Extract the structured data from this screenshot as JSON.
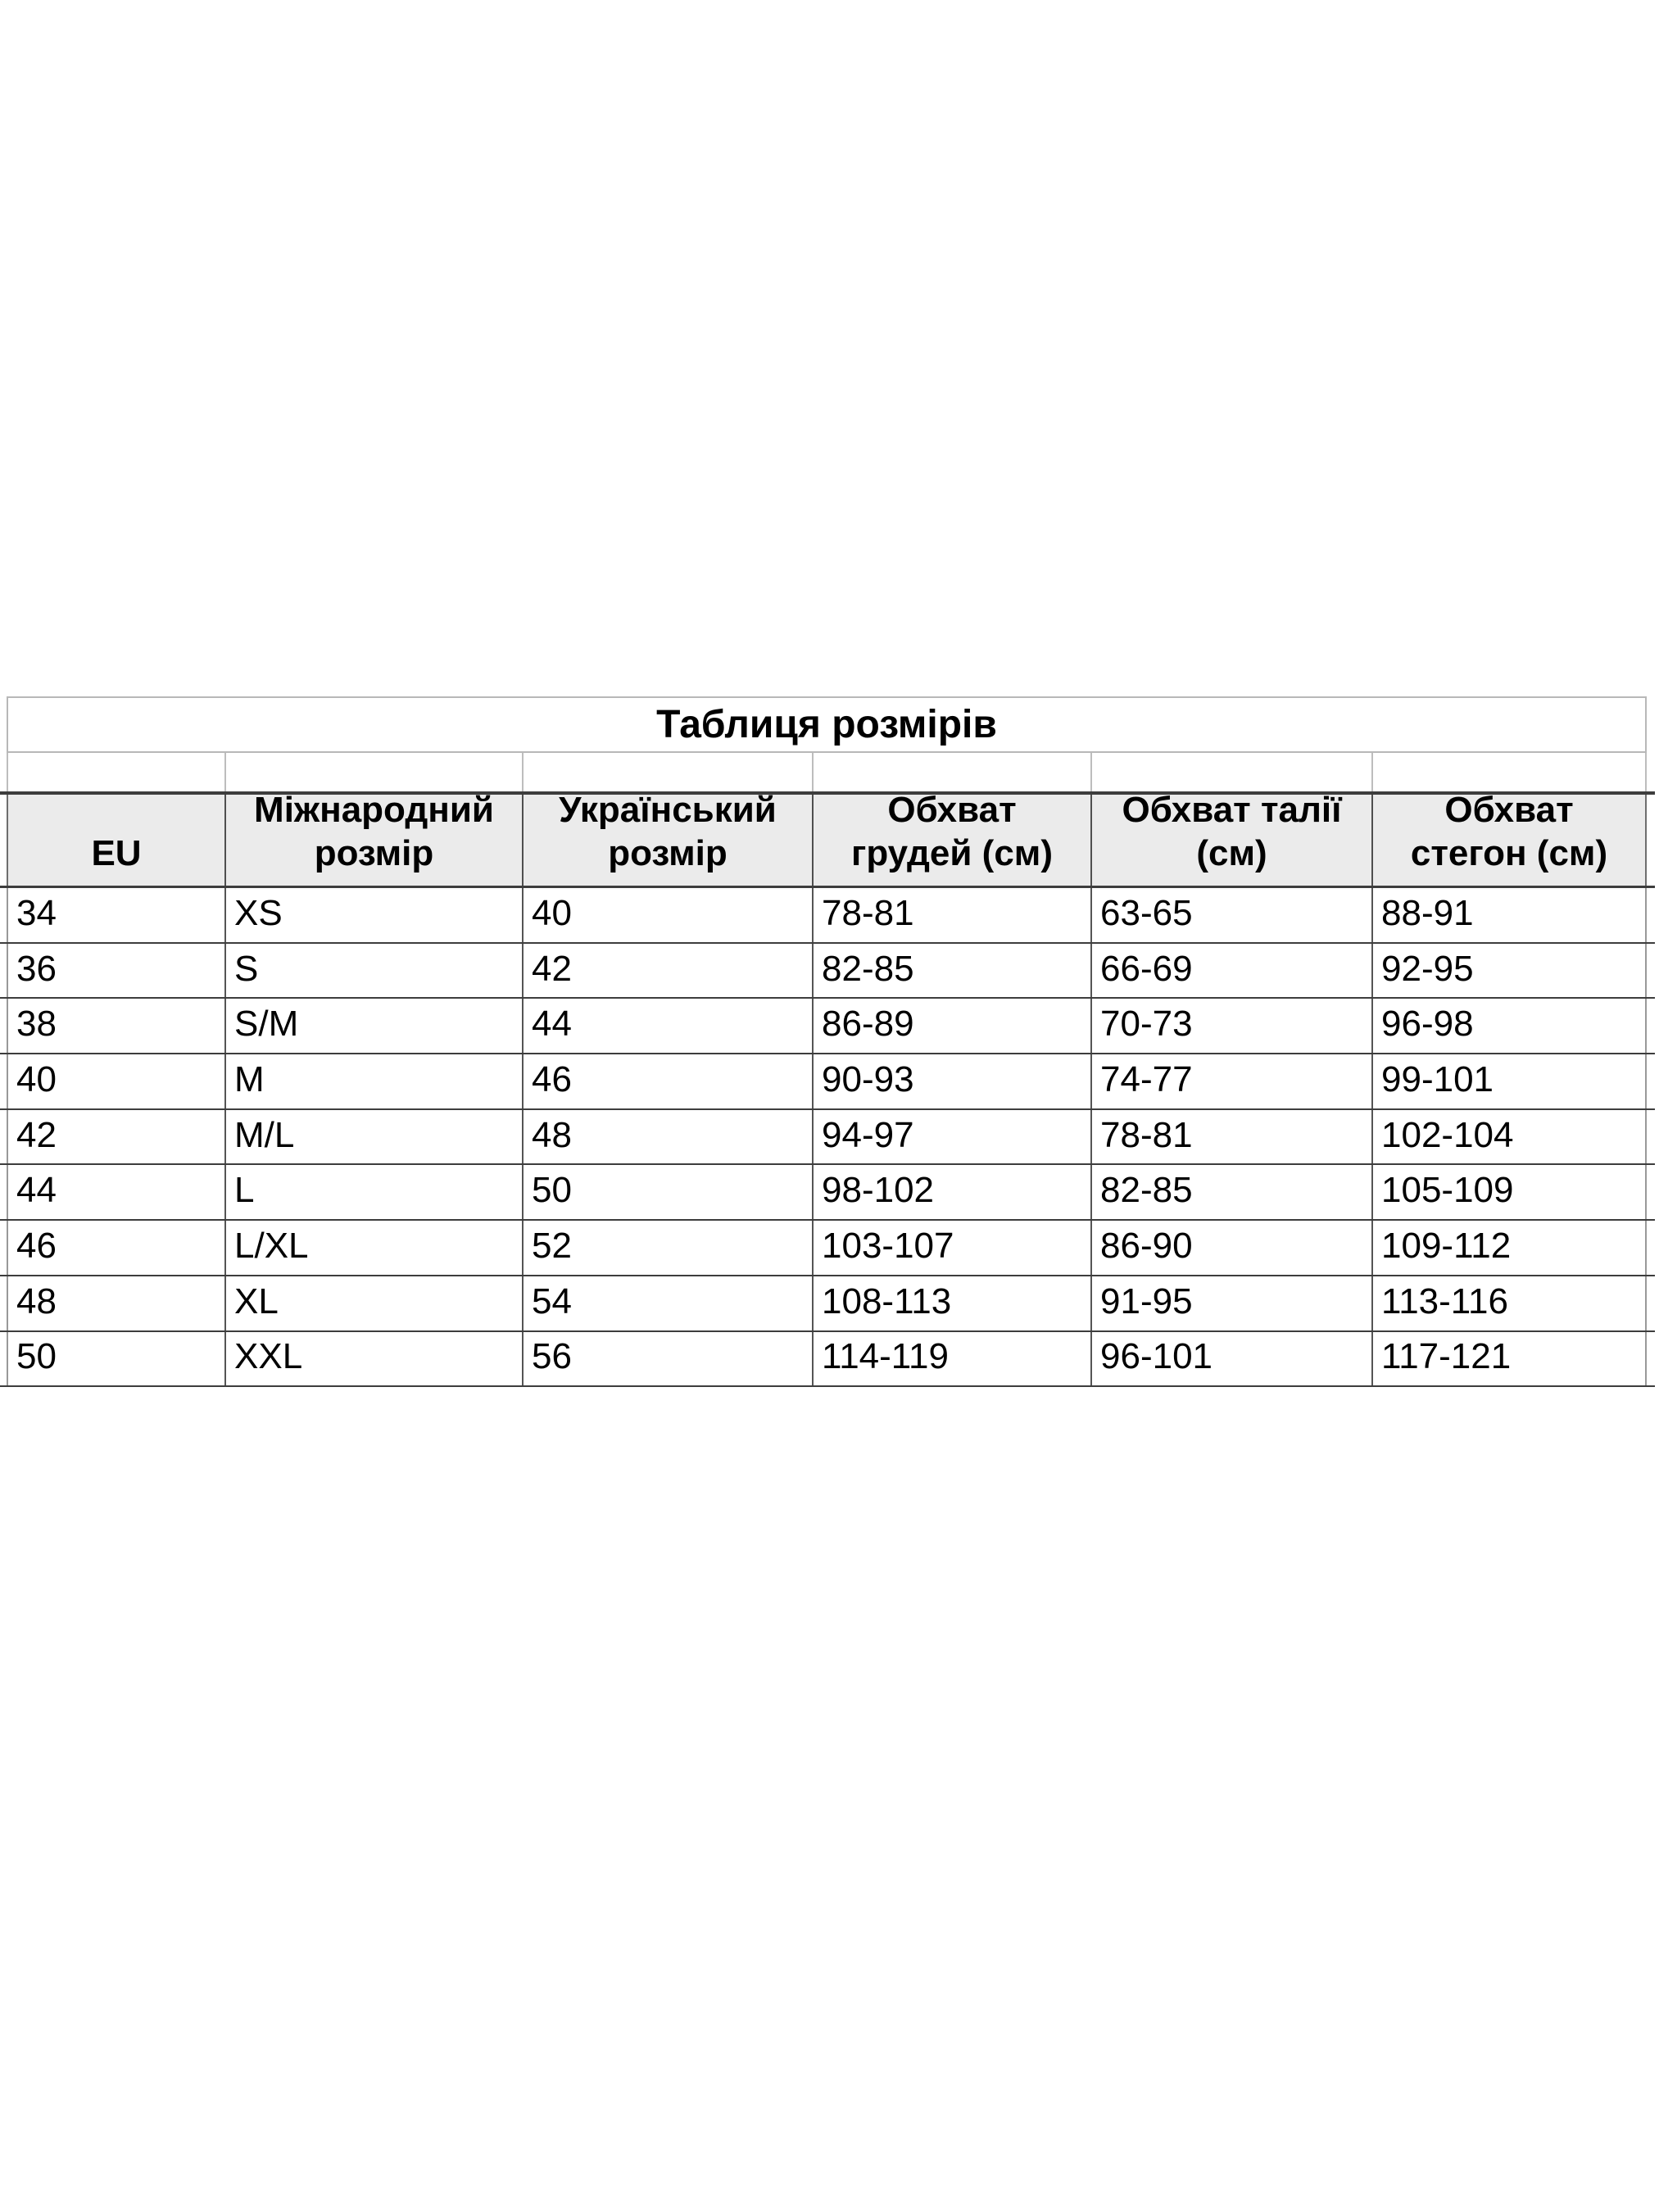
{
  "title": "Таблиця розмірів",
  "table": {
    "columns": [
      "EU",
      "Міжнародний\nрозмір",
      "Український\nрозмір",
      "Обхват\nгрудей (см)",
      "Обхват талії\n(см)",
      "Обхват\nстегон (см)"
    ],
    "rows": [
      [
        "34",
        "XS",
        "40",
        "78-81",
        "63-65",
        "88-91"
      ],
      [
        "36",
        "S",
        "42",
        "82-85",
        "66-69",
        "92-95"
      ],
      [
        "38",
        "S/M",
        "44",
        "86-89",
        "70-73",
        "96-98"
      ],
      [
        "40",
        "M",
        "46",
        "90-93",
        "74-77",
        "99-101"
      ],
      [
        "42",
        "M/L",
        "48",
        "94-97",
        "78-81",
        "102-104"
      ],
      [
        "44",
        "L",
        "50",
        "98-102",
        "82-85",
        "105-109"
      ],
      [
        "46",
        "L/XL",
        "52",
        "103-107",
        "86-90",
        "109-112"
      ],
      [
        "48",
        "XL",
        "54",
        "108-113",
        "91-95",
        "113-116"
      ],
      [
        "50",
        "XXL",
        "56",
        "114-119",
        "96-101",
        "117-121"
      ]
    ]
  }
}
